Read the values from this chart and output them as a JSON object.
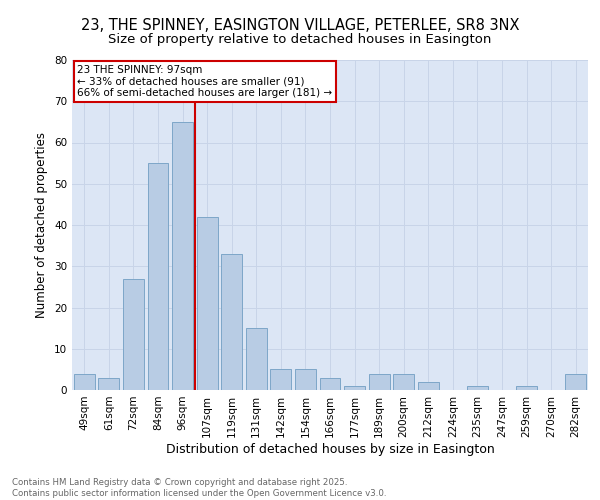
{
  "title1": "23, THE SPINNEY, EASINGTON VILLAGE, PETERLEE, SR8 3NX",
  "title2": "Size of property relative to detached houses in Easington",
  "xlabel": "Distribution of detached houses by size in Easington",
  "ylabel": "Number of detached properties",
  "categories": [
    "49sqm",
    "61sqm",
    "72sqm",
    "84sqm",
    "96sqm",
    "107sqm",
    "119sqm",
    "131sqm",
    "142sqm",
    "154sqm",
    "166sqm",
    "177sqm",
    "189sqm",
    "200sqm",
    "212sqm",
    "224sqm",
    "235sqm",
    "247sqm",
    "259sqm",
    "270sqm",
    "282sqm"
  ],
  "values": [
    4,
    3,
    27,
    55,
    65,
    42,
    33,
    15,
    5,
    5,
    3,
    1,
    4,
    4,
    2,
    0,
    1,
    0,
    1,
    0,
    4
  ],
  "bar_color": "#b8cce4",
  "bar_edge_color": "#7da6c8",
  "annotation_text": "23 THE SPINNEY: 97sqm\n← 33% of detached houses are smaller (91)\n66% of semi-detached houses are larger (181) →",
  "annotation_box_color": "#cc0000",
  "vline_color": "#cc0000",
  "grid_color": "#c8d4e8",
  "background_color": "#dce6f5",
  "ylim": [
    0,
    80
  ],
  "yticks": [
    0,
    10,
    20,
    30,
    40,
    50,
    60,
    70,
    80
  ],
  "footnote": "Contains HM Land Registry data © Crown copyright and database right 2025.\nContains public sector information licensed under the Open Government Licence v3.0.",
  "title1_fontsize": 10.5,
  "title2_fontsize": 9.5,
  "xlabel_fontsize": 9,
  "ylabel_fontsize": 8.5,
  "tick_fontsize": 7.5,
  "annot_fontsize": 7.5,
  "footnote_fontsize": 6.2
}
